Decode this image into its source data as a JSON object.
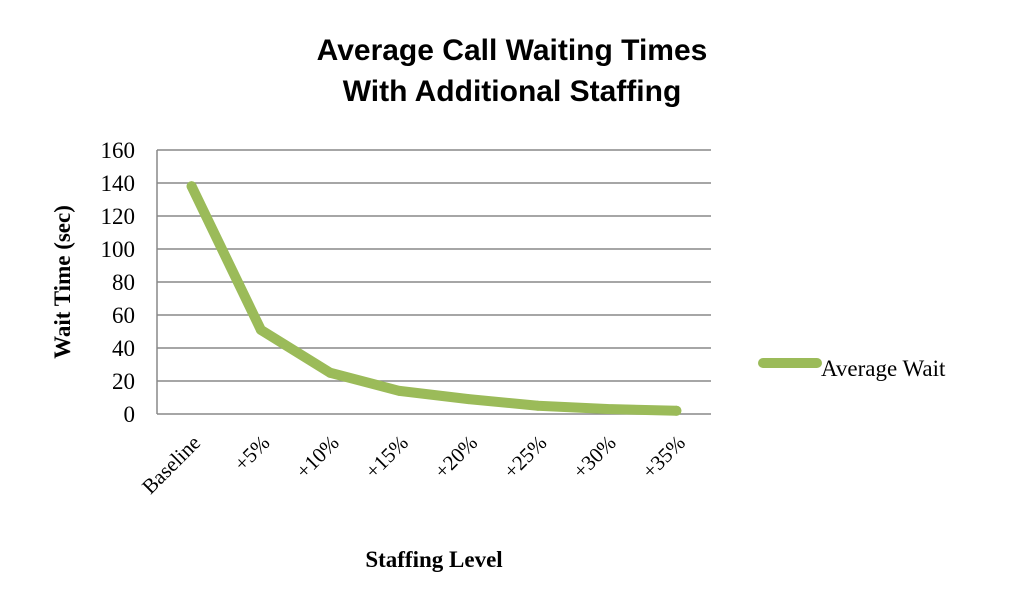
{
  "chart_data": {
    "type": "line",
    "title_lines": [
      "Average Call Waiting Times",
      "With Additional Staffing"
    ],
    "xlabel": "Staffing Level",
    "ylabel": "Wait Time (sec)",
    "categories": [
      "Baseline",
      "+5%",
      "+10%",
      "+15%",
      "+20%",
      "+25%",
      "+30%",
      "+35%"
    ],
    "series": [
      {
        "name": "Average Wait",
        "values": [
          138,
          51,
          25,
          14,
          9,
          5,
          3,
          2
        ],
        "color": "#9bbb59"
      }
    ],
    "yticks": [
      "0",
      "20",
      "40",
      "60",
      "80",
      "100",
      "120",
      "140",
      "160"
    ],
    "ylim": [
      0,
      160
    ],
    "grid": true,
    "legend_position": "right"
  }
}
